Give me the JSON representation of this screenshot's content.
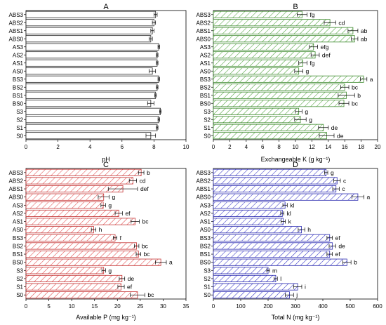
{
  "chart_data": [
    {
      "panel": "A",
      "type": "bar",
      "orientation": "horizontal",
      "xlabel": "pH",
      "xlim": [
        0,
        10
      ],
      "xticks": [
        0,
        2,
        4,
        6,
        8,
        10
      ],
      "categories": [
        "ABS3",
        "ABS2",
        "ABS1",
        "ABS0",
        "AS3",
        "AS2",
        "AS1",
        "AS0",
        "BS3",
        "BS2",
        "BS1",
        "BS0",
        "S3",
        "S2",
        "S1",
        "S0"
      ],
      "values": [
        8.1,
        8.0,
        7.9,
        7.8,
        8.3,
        8.2,
        8.2,
        7.9,
        8.3,
        8.2,
        8.1,
        7.8,
        8.4,
        8.3,
        8.2,
        7.8
      ],
      "errors": [
        0.1,
        0.1,
        0.1,
        0.1,
        0.05,
        0.05,
        0.05,
        0.2,
        0.05,
        0.05,
        0.05,
        0.2,
        0.05,
        0.05,
        0.05,
        0.3
      ],
      "letters": [
        "",
        "",
        "",
        "",
        "",
        "",
        "",
        "",
        "",
        "",
        "",
        "",
        "",
        "",
        "",
        ""
      ],
      "fill": "#ffffff",
      "hatch_color": "",
      "stroke": "#222222"
    },
    {
      "panel": "B",
      "type": "bar",
      "orientation": "horizontal",
      "xlabel": "Exchangeable K (g kg⁻¹)",
      "xlim": [
        0,
        20
      ],
      "xticks": [
        0,
        2,
        4,
        6,
        8,
        10,
        12,
        14,
        16,
        18,
        20
      ],
      "categories": [
        "ABS3",
        "ABS2",
        "ABS1",
        "ABS0",
        "AS3",
        "AS2",
        "AS1",
        "AS0",
        "BS3",
        "BS2",
        "BS1",
        "BS0",
        "S3",
        "S2",
        "S1",
        "S0"
      ],
      "values": [
        10.8,
        14.2,
        17.0,
        17.2,
        12.2,
        12.4,
        10.9,
        10.4,
        18.3,
        16.0,
        16.2,
        15.9,
        10.4,
        10.6,
        13.4,
        13.8
      ],
      "errors": [
        0.6,
        0.7,
        0.6,
        0.4,
        0.5,
        0.5,
        0.5,
        0.5,
        0.4,
        0.5,
        1.0,
        0.6,
        0.4,
        0.7,
        0.6,
        0.9
      ],
      "letters": [
        "fg",
        "cd",
        "ab",
        "ab",
        "efg",
        "def",
        "fg",
        "g",
        "a",
        "bc",
        "b",
        "bc",
        "g",
        "g",
        "de",
        "de"
      ],
      "fill": "#ffffff",
      "hatch_color": "#4da23a",
      "stroke": "#3e8a2e"
    },
    {
      "panel": "C",
      "type": "bar",
      "orientation": "horizontal",
      "xlabel": "Available P (mg kg⁻¹)",
      "xlim": [
        0,
        35
      ],
      "xticks": [
        0,
        5,
        10,
        15,
        20,
        25,
        30,
        35
      ],
      "categories": [
        "ABS3",
        "ABS2",
        "ABS1",
        "ABS0",
        "AS3",
        "AS2",
        "AS1",
        "AS0",
        "BS3",
        "BS2",
        "BS1",
        "BS0",
        "S3",
        "S2",
        "S1",
        "S0"
      ],
      "values": [
        25.2,
        23.4,
        21.2,
        17.0,
        16.9,
        20.3,
        23.9,
        14.8,
        19.5,
        24.2,
        24.6,
        29.5,
        17.0,
        21.0,
        20.8,
        24.4
      ],
      "errors": [
        0.6,
        0.8,
        3.2,
        1.2,
        0.5,
        0.8,
        0.9,
        0.5,
        0.4,
        0.5,
        0.5,
        1.2,
        0.4,
        0.6,
        0.7,
        1.6
      ],
      "letters": [
        "b",
        "cd",
        "def",
        "g",
        "g",
        "ef",
        "bc",
        "h",
        "f",
        "bc",
        "bc",
        "a",
        "g",
        "de",
        "ef",
        "bc"
      ],
      "fill": "#ffffff",
      "hatch_color": "#e24a4a",
      "stroke": "#c43434"
    },
    {
      "panel": "D",
      "type": "bar",
      "orientation": "horizontal",
      "xlabel": "Total N (mg kg⁻¹)",
      "xlim": [
        0,
        600
      ],
      "xticks": [
        0,
        100,
        200,
        300,
        400,
        500,
        600
      ],
      "categories": [
        "ABS3",
        "ABS2",
        "ABS1",
        "ABS0",
        "AS3",
        "AS2",
        "AS1",
        "AS0",
        "BS3",
        "BS2",
        "BS1",
        "BS0",
        "S3",
        "S2",
        "S1",
        "S0"
      ],
      "values": [
        412,
        452,
        448,
        528,
        262,
        252,
        255,
        322,
        425,
        435,
        425,
        488,
        200,
        228,
        308,
        278
      ],
      "errors": [
        6,
        12,
        12,
        22,
        8,
        6,
        8,
        12,
        10,
        12,
        10,
        15,
        5,
        6,
        15,
        15
      ],
      "letters": [
        "g",
        "c",
        "c",
        "a",
        "kl",
        "kl",
        "k",
        "h",
        "ef",
        "de",
        "ef",
        "b",
        "m",
        "l",
        "i",
        "j"
      ],
      "fill": "#ffffff",
      "hatch_color": "#3434c8",
      "stroke": "#2a2ab0"
    }
  ]
}
